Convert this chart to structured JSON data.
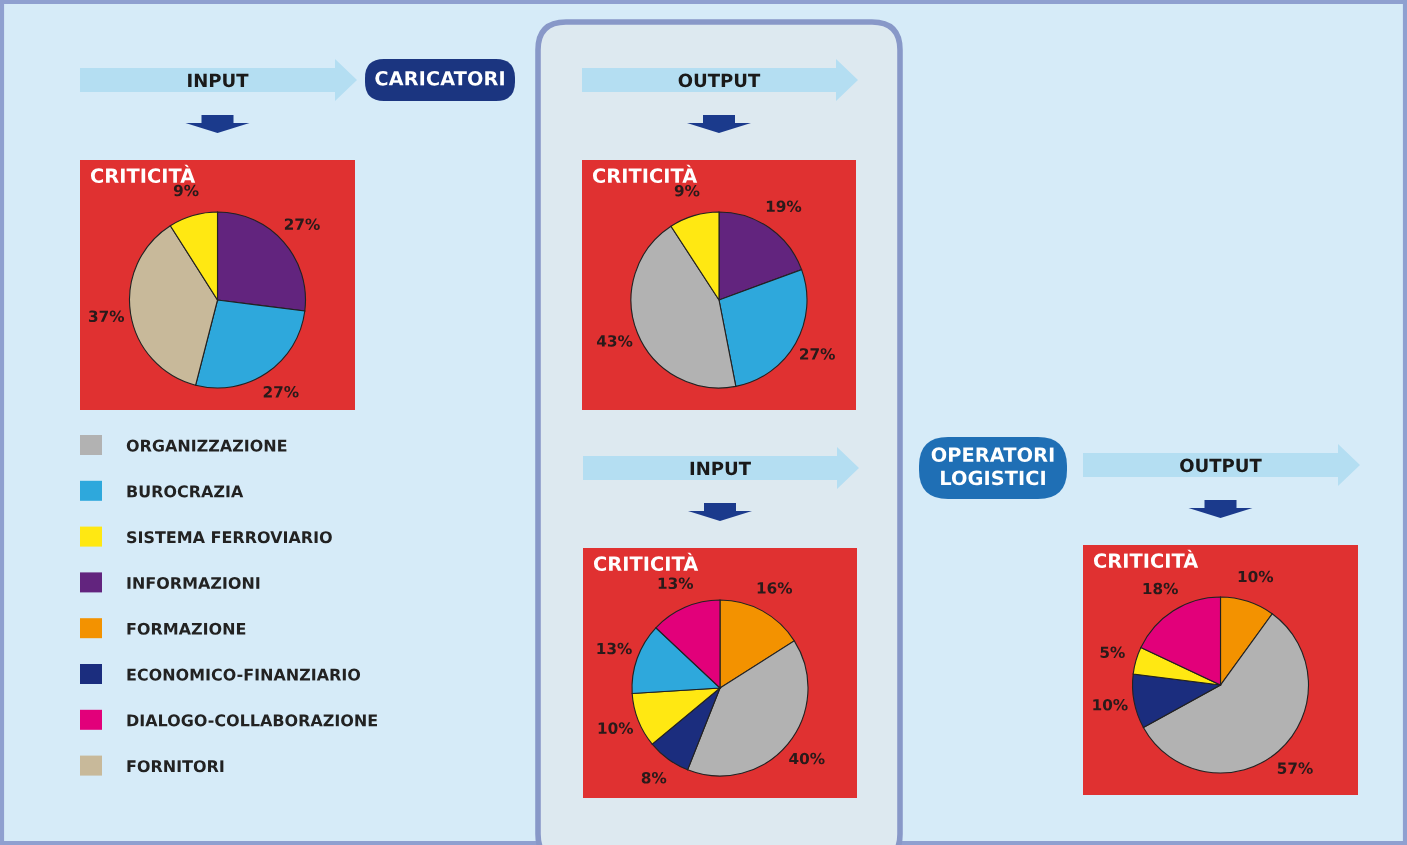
{
  "chart_data": [
    {
      "type": "pie",
      "title": "CRITICITÀ",
      "subtitle": "INPUT",
      "categories": [
        null,
        null,
        null,
        null
      ],
      "values": [
        27,
        27,
        37,
        9
      ],
      "colors": [
        "#62247e",
        "#2ea8dc",
        "#c8b99a",
        "#ffe812"
      ],
      "value_labels": [
        "27%",
        "27%",
        "37%",
        "9%"
      ]
    },
    {
      "type": "pie",
      "title": "CRITICITÀ",
      "subtitle": "OUTPUT",
      "categories": [
        null,
        null,
        null,
        null
      ],
      "values": [
        19,
        27,
        43,
        9
      ],
      "colors": [
        "#62247e",
        "#2ea8dc",
        "#b2b2b2",
        "#ffe812"
      ],
      "value_labels": [
        "19%",
        "27%",
        "43%",
        "9%"
      ]
    },
    {
      "type": "pie",
      "title": "CRITICITÀ",
      "subtitle": "INPUT",
      "categories": [
        null,
        null,
        null,
        null,
        null,
        null
      ],
      "values": [
        16,
        40,
        8,
        10,
        13,
        13
      ],
      "colors": [
        "#f39200",
        "#b2b2b2",
        "#1b2d7e",
        "#ffe812",
        "#2ea8dc",
        "#e2007a"
      ],
      "value_labels": [
        "16%",
        "40%",
        "8%",
        "10%",
        "13%",
        "13%"
      ]
    },
    {
      "type": "pie",
      "title": "CRITICITÀ",
      "subtitle": "OUTPUT",
      "categories": [
        null,
        null,
        null,
        null,
        null
      ],
      "values": [
        10,
        57,
        10,
        5,
        18
      ],
      "colors": [
        "#f39200",
        "#b2b2b2",
        "#1b2d7e",
        "#ffe812",
        "#e2007a"
      ],
      "value_labels": [
        "10%",
        "57%",
        "10%",
        "5%",
        "18%"
      ]
    },
    {
      "type": "other",
      "categories": [
        "ORGANIZZAZIONE",
        "BUROCRAZIA",
        "SISTEMA FERROVIARIO",
        "INFORMAZIONI",
        "FORMAZIONE",
        "ECONOMICO-FINANZIARIO",
        "DIALOGO-COLLABORAZIONE",
        "FORNITORI"
      ],
      "colors": [
        "#b2b2b2",
        "#2ea8dc",
        "#ffe812",
        "#62247e",
        "#f39200",
        "#1b2d7e",
        "#e2007a",
        "#c8b99a"
      ],
      "annotations": [
        "CARICATORI",
        "OPERATORI\nLOGISTICI"
      ]
    }
  ]
}
